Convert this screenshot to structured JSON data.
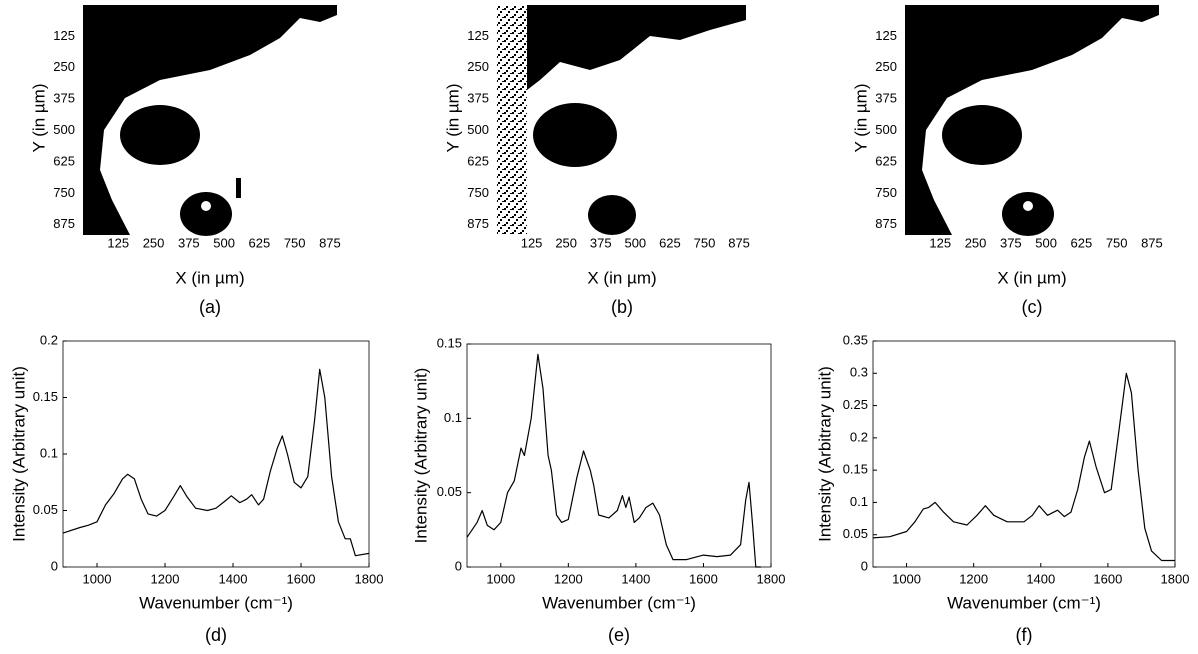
{
  "chart_data": [
    {
      "type": "image",
      "panel_label": "(a)",
      "xlabel": "X (in µm)",
      "ylabel": "Y (in µm)",
      "xlim": [
        0,
        900
      ],
      "xticks": [
        125,
        250,
        375,
        500,
        625,
        750,
        875
      ],
      "ylim": [
        900,
        0
      ],
      "yticks": [
        125,
        250,
        375,
        500,
        625,
        750,
        875
      ]
    },
    {
      "type": "image",
      "panel_label": "(b)",
      "xlabel": "X (in µm)",
      "ylabel": "Y (in µm)",
      "xlim": [
        0,
        900
      ],
      "xticks": [
        125,
        250,
        375,
        500,
        625,
        750,
        875
      ],
      "ylim": [
        900,
        0
      ],
      "yticks": [
        125,
        250,
        375,
        500,
        625,
        750,
        875
      ]
    },
    {
      "type": "image",
      "panel_label": "(c)",
      "xlabel": "X (in µm)",
      "ylabel": "Y (in µm)",
      "xlim": [
        0,
        900
      ],
      "xticks": [
        125,
        250,
        375,
        500,
        625,
        750,
        875
      ],
      "ylim": [
        900,
        0
      ],
      "yticks": [
        125,
        250,
        375,
        500,
        625,
        750,
        875
      ]
    },
    {
      "type": "line",
      "panel_label": "(d)",
      "xlabel": "Wavenumber (cm⁻¹)",
      "ylabel": "Intensity (Arbitrary unit)",
      "color": "#000000",
      "x": [
        900,
        950,
        975,
        1000,
        1025,
        1050,
        1075,
        1090,
        1110,
        1130,
        1150,
        1175,
        1200,
        1225,
        1245,
        1265,
        1290,
        1325,
        1350,
        1375,
        1395,
        1420,
        1440,
        1455,
        1475,
        1490,
        1510,
        1530,
        1545,
        1560,
        1580,
        1600,
        1620,
        1640,
        1655,
        1670,
        1690,
        1710,
        1730,
        1745,
        1760,
        1800
      ],
      "values": [
        0.03,
        0.035,
        0.037,
        0.04,
        0.055,
        0.065,
        0.078,
        0.082,
        0.078,
        0.06,
        0.047,
        0.045,
        0.05,
        0.062,
        0.072,
        0.062,
        0.052,
        0.05,
        0.052,
        0.058,
        0.063,
        0.057,
        0.06,
        0.064,
        0.055,
        0.06,
        0.085,
        0.105,
        0.116,
        0.1,
        0.075,
        0.07,
        0.08,
        0.13,
        0.175,
        0.15,
        0.08,
        0.04,
        0.025,
        0.025,
        0.01,
        0.012
      ],
      "xlim": [
        900,
        1800
      ],
      "xticks": [
        1000,
        1200,
        1400,
        1600,
        1800
      ],
      "ylim": [
        0,
        0.2
      ],
      "yticks": [
        0,
        0.05,
        0.1,
        0.15,
        0.2
      ]
    },
    {
      "type": "line",
      "panel_label": "(e)",
      "xlabel": "Wavenumber (cm⁻¹)",
      "ylabel": "Intensity (Arbitrary unit)",
      "color": "#000000",
      "x": [
        900,
        930,
        945,
        960,
        980,
        1000,
        1020,
        1040,
        1060,
        1070,
        1090,
        1110,
        1125,
        1140,
        1150,
        1165,
        1180,
        1200,
        1225,
        1245,
        1265,
        1275,
        1290,
        1320,
        1345,
        1360,
        1370,
        1380,
        1395,
        1410,
        1430,
        1450,
        1470,
        1490,
        1510,
        1550,
        1600,
        1640,
        1680,
        1710,
        1725,
        1735,
        1745,
        1755,
        1770
      ],
      "values": [
        0.02,
        0.03,
        0.038,
        0.028,
        0.025,
        0.03,
        0.05,
        0.058,
        0.08,
        0.075,
        0.1,
        0.143,
        0.12,
        0.075,
        0.065,
        0.035,
        0.03,
        0.032,
        0.06,
        0.078,
        0.065,
        0.055,
        0.035,
        0.033,
        0.038,
        0.048,
        0.04,
        0.047,
        0.03,
        0.033,
        0.04,
        0.043,
        0.035,
        0.015,
        0.005,
        0.005,
        0.008,
        0.007,
        0.008,
        0.015,
        0.045,
        0.057,
        0.03,
        0,
        0
      ],
      "xlim": [
        900,
        1800
      ],
      "xticks": [
        1000,
        1200,
        1400,
        1600,
        1800
      ],
      "ylim": [
        0,
        0.15
      ],
      "yticks": [
        0,
        0.05,
        0.1,
        0.15
      ]
    },
    {
      "type": "line",
      "panel_label": "(f)",
      "xlabel": "Wavenumber (cm⁻¹)",
      "ylabel": "Intensity (Arbitrary unit)",
      "color": "#000000",
      "x": [
        900,
        950,
        1000,
        1025,
        1050,
        1065,
        1085,
        1110,
        1140,
        1180,
        1210,
        1235,
        1260,
        1300,
        1350,
        1375,
        1395,
        1420,
        1450,
        1470,
        1490,
        1510,
        1530,
        1545,
        1565,
        1590,
        1610,
        1630,
        1655,
        1670,
        1690,
        1710,
        1730,
        1760,
        1800
      ],
      "values": [
        0.045,
        0.047,
        0.055,
        0.07,
        0.09,
        0.092,
        0.1,
        0.085,
        0.07,
        0.065,
        0.08,
        0.095,
        0.08,
        0.07,
        0.07,
        0.08,
        0.095,
        0.08,
        0.088,
        0.078,
        0.085,
        0.12,
        0.17,
        0.195,
        0.155,
        0.115,
        0.12,
        0.2,
        0.3,
        0.27,
        0.15,
        0.06,
        0.025,
        0.01,
        0.01
      ],
      "xlim": [
        900,
        1800
      ],
      "xticks": [
        1000,
        1200,
        1400,
        1600,
        1800
      ],
      "ylim": [
        0,
        0.35
      ],
      "yticks": [
        0,
        0.05,
        0.1,
        0.15,
        0.2,
        0.25,
        0.3,
        0.35
      ]
    }
  ]
}
